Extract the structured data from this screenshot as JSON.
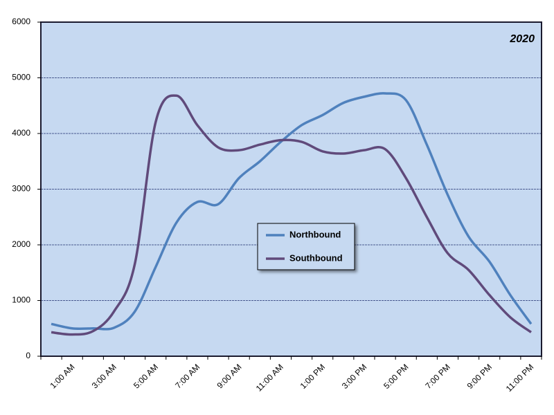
{
  "chart_data": {
    "type": "line",
    "annotation": "2020",
    "categories": [
      null,
      "1:00 AM",
      null,
      "3:00 AM",
      null,
      "5:00 AM",
      null,
      "7:00 AM",
      null,
      "9:00 AM",
      null,
      "11:00 AM",
      null,
      "1:00 PM",
      null,
      "3:00 PM",
      null,
      "5:00 PM",
      null,
      "7:00 PM",
      null,
      "9:00 PM",
      null,
      "11:00 PM"
    ],
    "series": [
      {
        "name": "Northbound",
        "color": "#4f81bd",
        "values": [
          580,
          500,
          500,
          510,
          800,
          1600,
          2400,
          2770,
          2730,
          3200,
          3500,
          3850,
          4150,
          4330,
          4550,
          4660,
          4720,
          4600,
          3800,
          2900,
          2150,
          1700,
          1100,
          580
        ]
      },
      {
        "name": "Southbound",
        "color": "#604a7b",
        "values": [
          430,
          390,
          450,
          800,
          1650,
          4200,
          4680,
          4150,
          3750,
          3700,
          3800,
          3880,
          3850,
          3680,
          3640,
          3700,
          3720,
          3200,
          2500,
          1850,
          1550,
          1100,
          700,
          430
        ]
      }
    ],
    "ylim": [
      0,
      6000
    ],
    "yticks": [
      0,
      1000,
      2000,
      3000,
      4000,
      5000,
      6000
    ],
    "grid": true
  }
}
